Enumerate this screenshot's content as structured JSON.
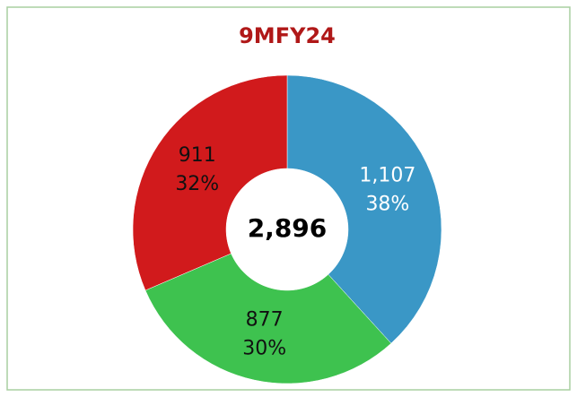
{
  "chart_data": {
    "type": "donut",
    "title": "9MFY24",
    "categories": [
      "Blue",
      "Green",
      "Red"
    ],
    "values": [
      1107,
      877,
      911
    ],
    "value_labels": [
      "1,107",
      "877",
      "911"
    ],
    "percent_labels": [
      "38%",
      "30%",
      "32%"
    ],
    "colors": [
      "#3a97c6",
      "#3ec24f",
      "#d11a1c"
    ],
    "label_colors": [
      "#ffffff",
      "#111111",
      "#111111"
    ],
    "center_label": "2,896"
  }
}
